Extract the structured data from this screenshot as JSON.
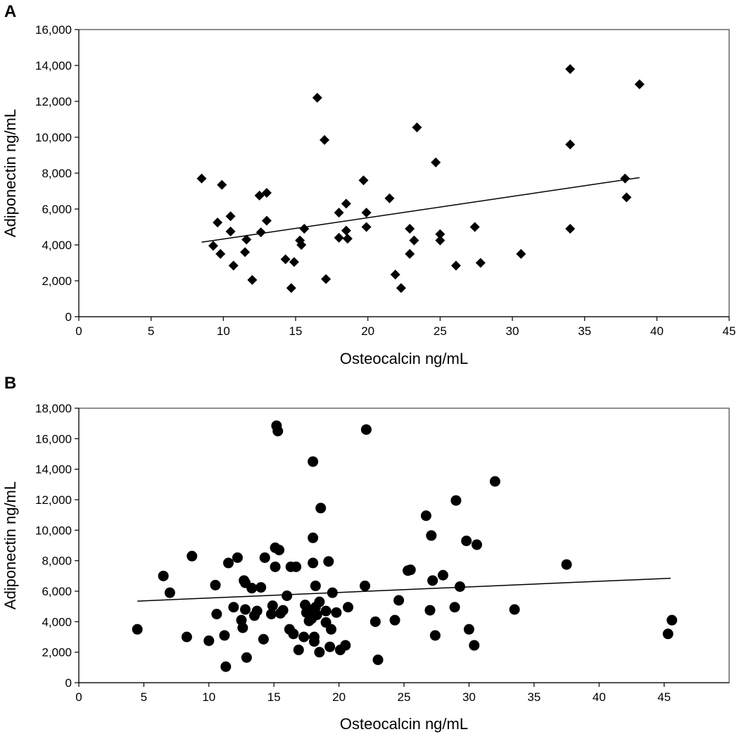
{
  "chart_data": [
    {
      "panel_label": "A",
      "type": "scatter",
      "marker": "diamond",
      "xlabel": "Osteocalcin ng/mL",
      "ylabel": "Adiponectin ng/mL",
      "xlim": [
        0,
        45
      ],
      "ylim": [
        0,
        16000
      ],
      "xticks": [
        0,
        5,
        10,
        15,
        20,
        25,
        30,
        35,
        40,
        45
      ],
      "yticks": [
        0,
        2000,
        4000,
        6000,
        8000,
        10000,
        12000,
        14000,
        16000
      ],
      "ytick_labels": [
        "0",
        "2,000",
        "4,000",
        "6,000",
        "8,000",
        "10,000",
        "12,000",
        "14,000",
        "16,000"
      ],
      "grid": false,
      "points": [
        {
          "x": 8.5,
          "y": 7700
        },
        {
          "x": 9.3,
          "y": 3950
        },
        {
          "x": 9.6,
          "y": 5250
        },
        {
          "x": 9.8,
          "y": 3500
        },
        {
          "x": 9.9,
          "y": 7350
        },
        {
          "x": 10.5,
          "y": 5600
        },
        {
          "x": 10.5,
          "y": 4750
        },
        {
          "x": 10.7,
          "y": 2850
        },
        {
          "x": 11.5,
          "y": 3600
        },
        {
          "x": 11.6,
          "y": 4300
        },
        {
          "x": 12.0,
          "y": 2050
        },
        {
          "x": 12.5,
          "y": 6750
        },
        {
          "x": 12.6,
          "y": 4700
        },
        {
          "x": 13.0,
          "y": 6900
        },
        {
          "x": 13.0,
          "y": 5350
        },
        {
          "x": 14.3,
          "y": 3200
        },
        {
          "x": 14.7,
          "y": 1600
        },
        {
          "x": 14.9,
          "y": 3050
        },
        {
          "x": 15.3,
          "y": 4250
        },
        {
          "x": 15.4,
          "y": 4000
        },
        {
          "x": 15.6,
          "y": 4900
        },
        {
          "x": 16.5,
          "y": 12200
        },
        {
          "x": 17.0,
          "y": 9850
        },
        {
          "x": 17.1,
          "y": 2100
        },
        {
          "x": 18.0,
          "y": 5800
        },
        {
          "x": 18.0,
          "y": 4400
        },
        {
          "x": 18.5,
          "y": 6300
        },
        {
          "x": 18.5,
          "y": 4800
        },
        {
          "x": 18.6,
          "y": 4350
        },
        {
          "x": 19.7,
          "y": 7600
        },
        {
          "x": 19.9,
          "y": 5800
        },
        {
          "x": 19.9,
          "y": 5000
        },
        {
          "x": 21.5,
          "y": 6600
        },
        {
          "x": 21.9,
          "y": 2350
        },
        {
          "x": 22.3,
          "y": 1600
        },
        {
          "x": 22.9,
          "y": 4900
        },
        {
          "x": 22.9,
          "y": 3500
        },
        {
          "x": 23.2,
          "y": 4250
        },
        {
          "x": 23.4,
          "y": 10550
        },
        {
          "x": 24.7,
          "y": 8600
        },
        {
          "x": 25.0,
          "y": 4600
        },
        {
          "x": 25.0,
          "y": 4250
        },
        {
          "x": 26.1,
          "y": 2850
        },
        {
          "x": 27.4,
          "y": 5000
        },
        {
          "x": 27.8,
          "y": 3000
        },
        {
          "x": 30.6,
          "y": 3500
        },
        {
          "x": 34.0,
          "y": 13800
        },
        {
          "x": 34.0,
          "y": 9600
        },
        {
          "x": 34.0,
          "y": 4900
        },
        {
          "x": 37.8,
          "y": 7700
        },
        {
          "x": 37.9,
          "y": 6650
        },
        {
          "x": 38.8,
          "y": 12950
        }
      ],
      "trendline": {
        "x": [
          8.5,
          38.8
        ],
        "y": [
          4150,
          7750
        ]
      }
    },
    {
      "panel_label": "B",
      "type": "scatter",
      "marker": "circle",
      "xlabel": "Osteocalcin ng/mL",
      "ylabel": "Adiponectin ng/mL",
      "xlim": [
        0,
        50
      ],
      "ylim": [
        0,
        18000
      ],
      "xticks": [
        0,
        5,
        10,
        15,
        20,
        25,
        30,
        35,
        40,
        45
      ],
      "yticks": [
        0,
        2000,
        4000,
        6000,
        8000,
        10000,
        12000,
        14000,
        16000,
        18000
      ],
      "ytick_labels": [
        "0",
        "2,000",
        "4,000",
        "6,000",
        "8,000",
        "10,000",
        "12,000",
        "14,000",
        "16,000",
        "18,000"
      ],
      "grid": false,
      "points": [
        {
          "x": 4.5,
          "y": 3500
        },
        {
          "x": 6.5,
          "y": 7000
        },
        {
          "x": 7.0,
          "y": 5900
        },
        {
          "x": 8.3,
          "y": 3000
        },
        {
          "x": 8.7,
          "y": 8300
        },
        {
          "x": 10.0,
          "y": 2750
        },
        {
          "x": 10.5,
          "y": 6400
        },
        {
          "x": 10.6,
          "y": 4500
        },
        {
          "x": 11.2,
          "y": 3100
        },
        {
          "x": 11.3,
          "y": 1050
        },
        {
          "x": 11.5,
          "y": 7850
        },
        {
          "x": 11.9,
          "y": 4950
        },
        {
          "x": 12.2,
          "y": 8200
        },
        {
          "x": 12.5,
          "y": 4100
        },
        {
          "x": 12.6,
          "y": 3600
        },
        {
          "x": 12.7,
          "y": 6700
        },
        {
          "x": 12.8,
          "y": 6550
        },
        {
          "x": 12.8,
          "y": 4800
        },
        {
          "x": 12.9,
          "y": 1650
        },
        {
          "x": 13.3,
          "y": 6200
        },
        {
          "x": 13.5,
          "y": 4400
        },
        {
          "x": 13.7,
          "y": 4700
        },
        {
          "x": 14.0,
          "y": 6250
        },
        {
          "x": 14.2,
          "y": 2850
        },
        {
          "x": 14.3,
          "y": 8200
        },
        {
          "x": 14.8,
          "y": 4500
        },
        {
          "x": 14.9,
          "y": 5050
        },
        {
          "x": 15.1,
          "y": 8850
        },
        {
          "x": 15.1,
          "y": 7600
        },
        {
          "x": 15.2,
          "y": 16850
        },
        {
          "x": 15.3,
          "y": 16500
        },
        {
          "x": 15.4,
          "y": 8700
        },
        {
          "x": 15.5,
          "y": 4550
        },
        {
          "x": 15.7,
          "y": 4750
        },
        {
          "x": 16.0,
          "y": 5700
        },
        {
          "x": 16.2,
          "y": 3500
        },
        {
          "x": 16.3,
          "y": 7600
        },
        {
          "x": 16.5,
          "y": 3200
        },
        {
          "x": 16.7,
          "y": 7600
        },
        {
          "x": 16.9,
          "y": 2150
        },
        {
          "x": 17.3,
          "y": 3000
        },
        {
          "x": 17.4,
          "y": 5100
        },
        {
          "x": 17.5,
          "y": 4600
        },
        {
          "x": 17.7,
          "y": 4800
        },
        {
          "x": 17.7,
          "y": 4050
        },
        {
          "x": 17.9,
          "y": 4200
        },
        {
          "x": 18.0,
          "y": 7850
        },
        {
          "x": 18.0,
          "y": 9500
        },
        {
          "x": 18.0,
          "y": 14500
        },
        {
          "x": 18.1,
          "y": 2700
        },
        {
          "x": 18.1,
          "y": 3000
        },
        {
          "x": 18.2,
          "y": 6350
        },
        {
          "x": 18.2,
          "y": 4950
        },
        {
          "x": 18.3,
          "y": 4450
        },
        {
          "x": 18.5,
          "y": 5300
        },
        {
          "x": 18.5,
          "y": 2000
        },
        {
          "x": 18.6,
          "y": 11450
        },
        {
          "x": 19.0,
          "y": 4700
        },
        {
          "x": 19.0,
          "y": 3950
        },
        {
          "x": 19.2,
          "y": 7950
        },
        {
          "x": 19.3,
          "y": 2350
        },
        {
          "x": 19.4,
          "y": 3500
        },
        {
          "x": 19.5,
          "y": 5900
        },
        {
          "x": 19.8,
          "y": 4600
        },
        {
          "x": 20.1,
          "y": 2150
        },
        {
          "x": 20.5,
          "y": 2450
        },
        {
          "x": 20.7,
          "y": 4950
        },
        {
          "x": 22.0,
          "y": 6350
        },
        {
          "x": 22.1,
          "y": 16600
        },
        {
          "x": 22.8,
          "y": 4000
        },
        {
          "x": 23.0,
          "y": 1500
        },
        {
          "x": 24.3,
          "y": 4100
        },
        {
          "x": 24.6,
          "y": 5400
        },
        {
          "x": 25.3,
          "y": 7350
        },
        {
          "x": 25.5,
          "y": 7400
        },
        {
          "x": 26.7,
          "y": 10950
        },
        {
          "x": 27.0,
          "y": 4750
        },
        {
          "x": 27.1,
          "y": 9650
        },
        {
          "x": 27.2,
          "y": 6700
        },
        {
          "x": 27.4,
          "y": 3100
        },
        {
          "x": 28.0,
          "y": 7050
        },
        {
          "x": 28.9,
          "y": 4950
        },
        {
          "x": 29.0,
          "y": 11950
        },
        {
          "x": 29.3,
          "y": 6300
        },
        {
          "x": 29.8,
          "y": 9300
        },
        {
          "x": 30.0,
          "y": 3500
        },
        {
          "x": 30.4,
          "y": 2450
        },
        {
          "x": 30.6,
          "y": 9050
        },
        {
          "x": 32.0,
          "y": 13200
        },
        {
          "x": 33.5,
          "y": 4800
        },
        {
          "x": 37.5,
          "y": 7750
        },
        {
          "x": 45.3,
          "y": 3200
        },
        {
          "x": 45.6,
          "y": 4100
        }
      ],
      "trendline": {
        "x": [
          4.5,
          45.5
        ],
        "y": [
          5350,
          6850
        ]
      }
    }
  ]
}
